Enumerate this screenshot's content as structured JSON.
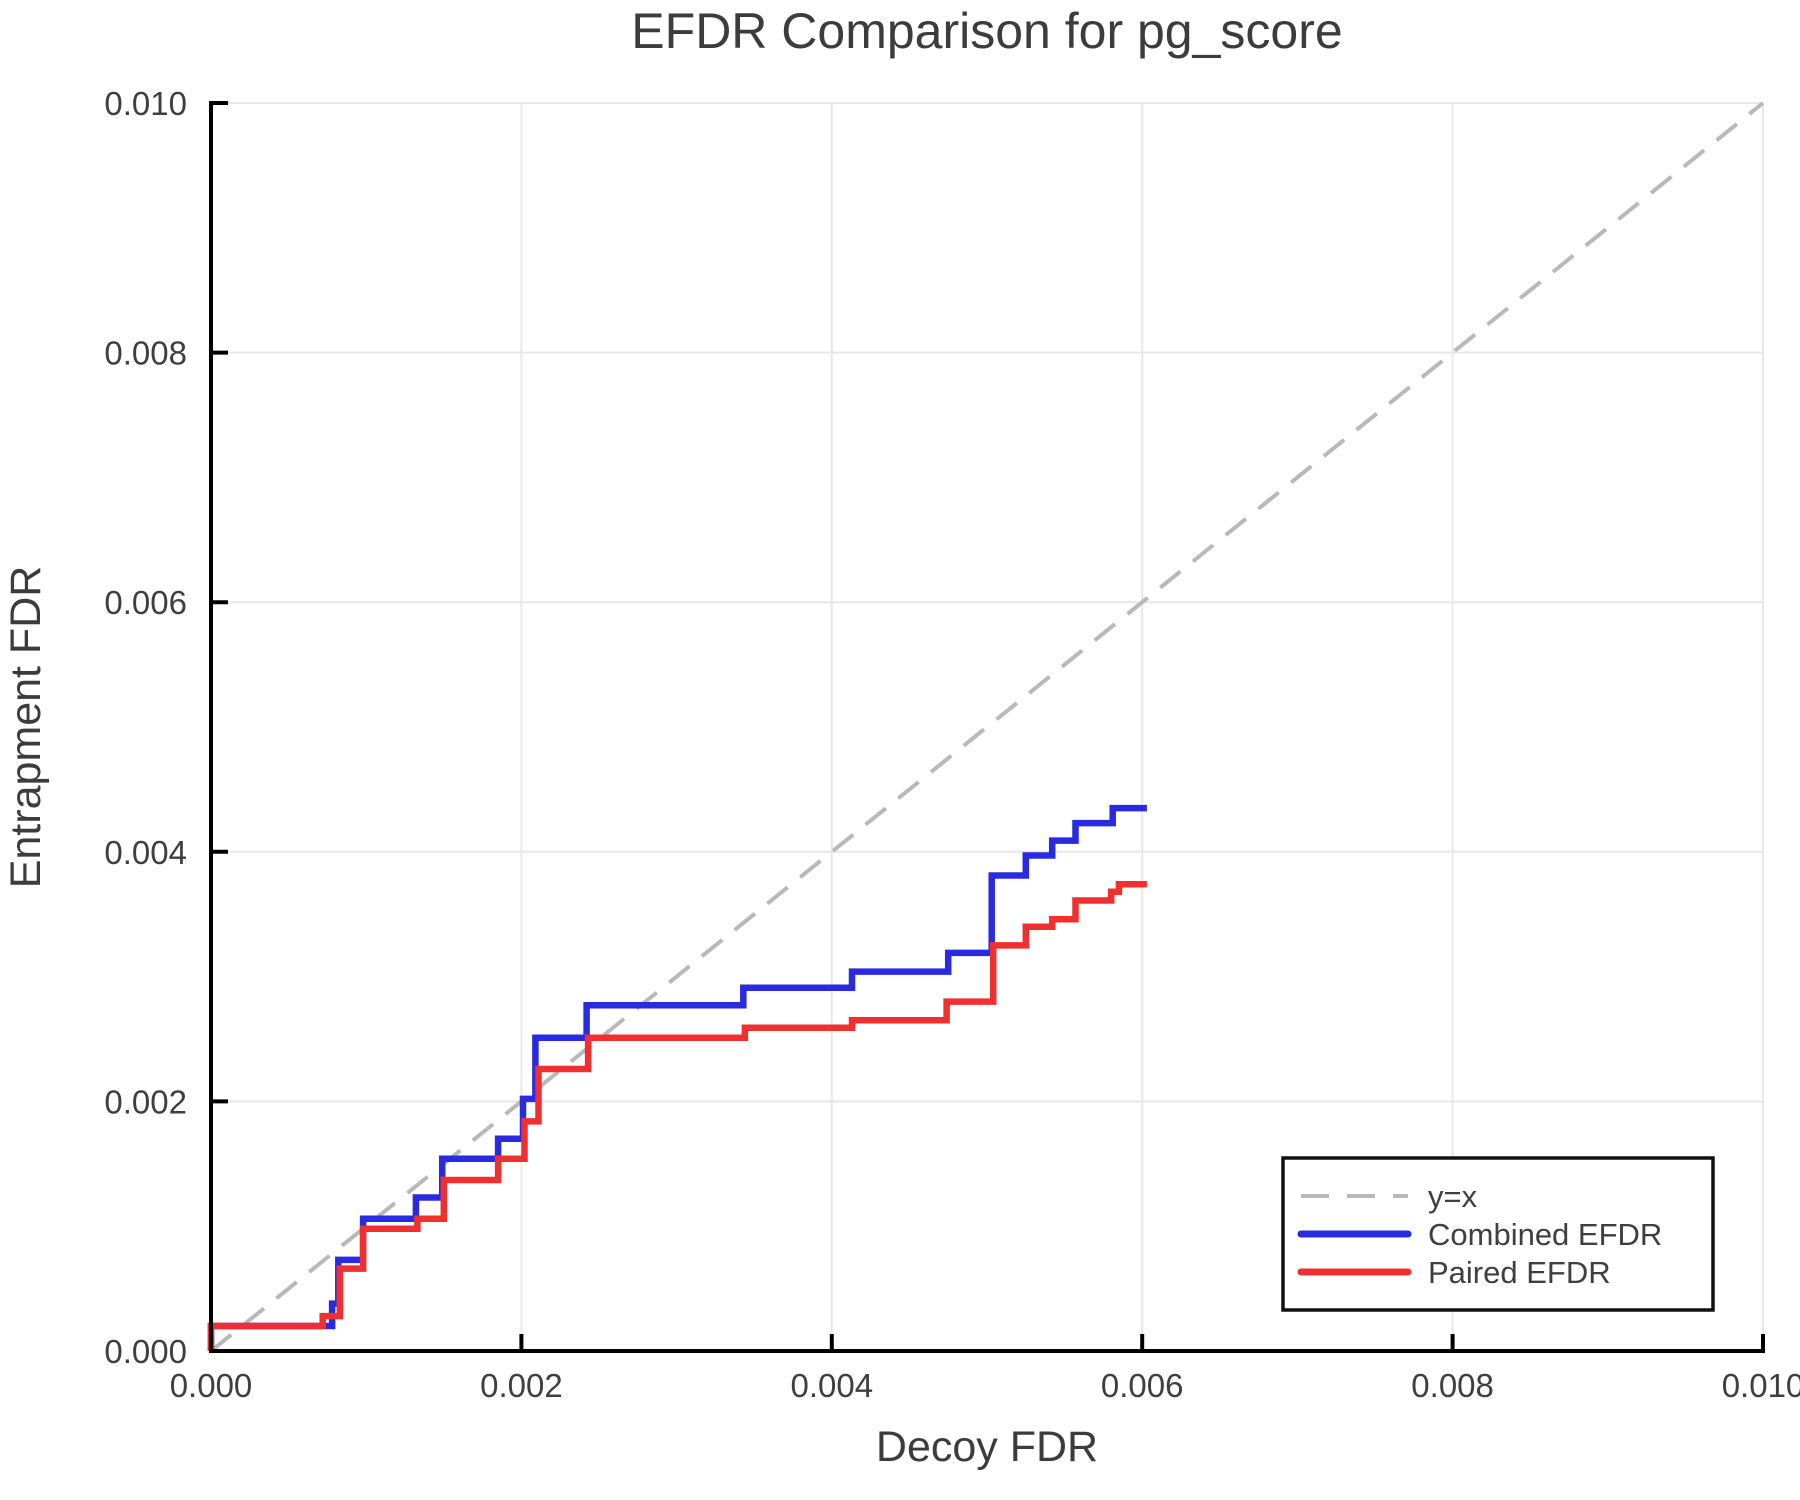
{
  "chart_data": {
    "type": "line",
    "title": "EFDR Comparison for pg_score",
    "xlabel": "Decoy FDR",
    "ylabel": "Entrapment FDR",
    "xlim": [
      0.0,
      0.01
    ],
    "ylim": [
      0.0,
      0.01
    ],
    "grid": true,
    "xticks": {
      "values": [
        0.0,
        0.002,
        0.004,
        0.006,
        0.008,
        0.01
      ],
      "labels": [
        "0.000",
        "0.002",
        "0.004",
        "0.006",
        "0.008",
        "0.010"
      ]
    },
    "yticks": {
      "values": [
        0.0,
        0.002,
        0.004,
        0.006,
        0.008,
        0.01
      ],
      "labels": [
        "0.000",
        "0.002",
        "0.004",
        "0.006",
        "0.008",
        "0.010"
      ]
    },
    "legend": {
      "position": "lower right",
      "entries": [
        "y=x",
        "Combined EFDR",
        "Paired EFDR"
      ]
    },
    "colors": {
      "grid": "#e8e8e8",
      "spine": "#000000",
      "text": "#3c3c3c",
      "legend_border": "#111111"
    },
    "series": [
      {
        "name": "y=x",
        "mode": "line",
        "style": "dashed",
        "color": "#b9b9b9",
        "points": [
          [
            0.0,
            0.0
          ],
          [
            0.01,
            0.01
          ]
        ]
      },
      {
        "name": "Combined EFDR",
        "mode": "step",
        "style": "solid",
        "color": "#2a2ae0",
        "points": [
          [
            0.0,
            0.0
          ],
          [
            0.0,
            0.0002
          ],
          [
            0.00078,
            0.00038
          ],
          [
            0.00082,
            0.00073
          ],
          [
            0.00098,
            0.00106
          ],
          [
            0.00132,
            0.00123
          ],
          [
            0.00149,
            0.00154
          ],
          [
            0.00185,
            0.0017
          ],
          [
            0.00201,
            0.00202
          ],
          [
            0.00209,
            0.00251
          ],
          [
            0.00242,
            0.00277
          ],
          [
            0.00343,
            0.00291
          ],
          [
            0.00413,
            0.00304
          ],
          [
            0.00475,
            0.00319
          ],
          [
            0.00503,
            0.00381
          ],
          [
            0.00525,
            0.00397
          ],
          [
            0.00542,
            0.00409
          ],
          [
            0.00557,
            0.00423
          ],
          [
            0.00581,
            0.00435
          ],
          [
            0.00603,
            0.00435
          ]
        ]
      },
      {
        "name": "Paired EFDR",
        "mode": "step",
        "style": "solid",
        "color": "#f03030",
        "points": [
          [
            0.0,
            0.0
          ],
          [
            0.0,
            0.0002
          ],
          [
            0.00072,
            0.00028
          ],
          [
            0.00083,
            0.00066
          ],
          [
            0.00098,
            0.00098
          ],
          [
            0.00133,
            0.00106
          ],
          [
            0.0015,
            0.00137
          ],
          [
            0.00185,
            0.00154
          ],
          [
            0.00202,
            0.00184
          ],
          [
            0.00211,
            0.00226
          ],
          [
            0.00243,
            0.00251
          ],
          [
            0.00344,
            0.00259
          ],
          [
            0.00413,
            0.00265
          ],
          [
            0.00474,
            0.0028
          ],
          [
            0.00504,
            0.00325
          ],
          [
            0.00525,
            0.0034
          ],
          [
            0.00542,
            0.00346
          ],
          [
            0.00557,
            0.00361
          ],
          [
            0.0058,
            0.00368
          ],
          [
            0.00585,
            0.00374
          ],
          [
            0.00603,
            0.00374
          ]
        ]
      }
    ]
  }
}
